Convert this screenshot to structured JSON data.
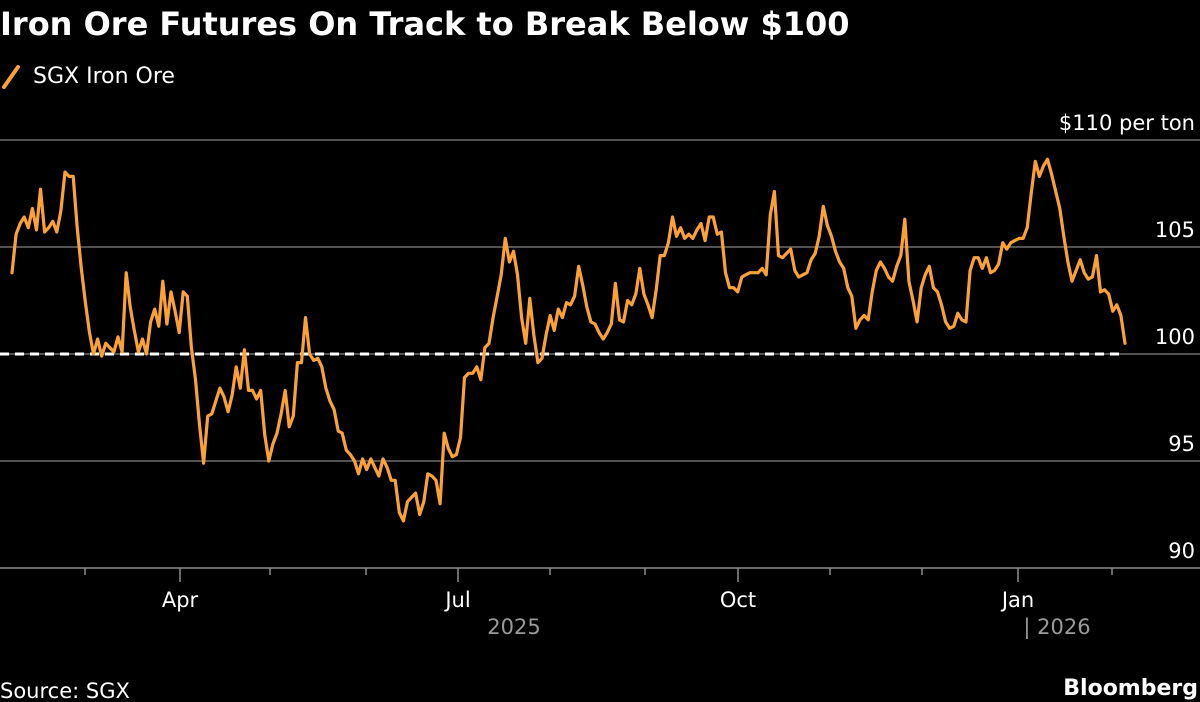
{
  "chart_data": {
    "type": "line",
    "title": "Iron Ore Futures On Track to Break Below $100",
    "legend": [
      "SGX Iron Ore"
    ],
    "legend_placement": "top-left",
    "ylabel": "$ per ton",
    "ylim": [
      90,
      110
    ],
    "y_ticks": [
      90,
      95,
      100,
      105,
      110
    ],
    "y_tick_labels": [
      "90",
      "95",
      "100",
      "105",
      "$110 per ton"
    ],
    "y_axis_side": "right",
    "grid": true,
    "x_tick_labels": [
      "Apr",
      "Jul",
      "Oct",
      "Jan"
    ],
    "year_labels": [
      "2025",
      "| 2026"
    ],
    "reference_line": {
      "value": 100,
      "style": "dashed",
      "color": "#ffffff"
    },
    "series": [
      {
        "name": "SGX Iron Ore",
        "color": "#fca234",
        "values": [
          103.8,
          105.6,
          106.1,
          106.4,
          105.9,
          106.8,
          105.8,
          107.7,
          105.7,
          105.9,
          106.2,
          105.7,
          106.7,
          108.5,
          108.3,
          108.3,
          105.9,
          104.0,
          102.4,
          101.0,
          100.0,
          100.7,
          99.9,
          100.5,
          100.3,
          100.1,
          100.8,
          100.1,
          103.8,
          102.2,
          101.1,
          100.1,
          100.7,
          100.0,
          101.5,
          102.1,
          101.3,
          103.4,
          101.4,
          102.9,
          102.0,
          101.0,
          102.9,
          102.7,
          100.3,
          98.8,
          96.7,
          94.9,
          97.1,
          97.2,
          97.8,
          98.4,
          98.0,
          97.3,
          98.1,
          99.4,
          98.4,
          100.2,
          98.3,
          98.3,
          97.9,
          98.3,
          96.2,
          95.0,
          95.8,
          96.3,
          97.2,
          98.3,
          96.6,
          97.1,
          99.6,
          99.6,
          101.7,
          100.0,
          99.7,
          99.8,
          99.4,
          98.4,
          97.8,
          97.4,
          96.4,
          96.3,
          95.5,
          95.3,
          95.0,
          94.4,
          95.1,
          94.6,
          95.1,
          94.7,
          94.3,
          95.1,
          94.7,
          94.1,
          94.1,
          92.6,
          92.2,
          93.1,
          93.3,
          93.5,
          92.5,
          93.1,
          94.4,
          94.3,
          94.1,
          93.0,
          96.3,
          95.6,
          95.2,
          95.3,
          96.1,
          98.9,
          99.1,
          99.1,
          99.4,
          98.8,
          100.3,
          100.5,
          101.7,
          102.7,
          103.7,
          105.4,
          104.3,
          104.8,
          103.7,
          101.7,
          100.5,
          102.6,
          100.9,
          99.6,
          99.8,
          100.9,
          101.8,
          101.1,
          102.1,
          101.7,
          102.4,
          102.3,
          102.7,
          104.1,
          103.2,
          102.2,
          101.5,
          101.4,
          101.0,
          100.7,
          101.0,
          101.4,
          103.3,
          101.6,
          101.5,
          102.5,
          102.3,
          102.8,
          104.0,
          102.8,
          102.3,
          101.7,
          103.0,
          104.6,
          104.6,
          105.2,
          106.4,
          105.5,
          105.9,
          105.4,
          105.6,
          105.4,
          105.8,
          106.1,
          105.3,
          106.4,
          106.4,
          105.6,
          105.7,
          103.8,
          103.1,
          103.1,
          102.9,
          103.6,
          103.7,
          103.8,
          103.8,
          103.8,
          104.0,
          103.7,
          106.5,
          107.6,
          104.6,
          104.5,
          104.7,
          104.9,
          103.9,
          103.6,
          103.7,
          103.8,
          104.4,
          104.7,
          105.5,
          106.9,
          106.0,
          105.5,
          104.8,
          104.3,
          104.0,
          103.1,
          102.7,
          101.2,
          101.6,
          101.8,
          101.6,
          102.9,
          103.9,
          104.3,
          104.0,
          103.6,
          103.4,
          104.1,
          104.6,
          106.3,
          103.4,
          102.5,
          101.5,
          103.1,
          103.7,
          104.1,
          103.1,
          102.9,
          102.3,
          101.5,
          101.2,
          101.3,
          101.9,
          101.6,
          101.5,
          103.9,
          104.5,
          104.5,
          104.0,
          104.5,
          103.8,
          103.9,
          104.2,
          105.2,
          104.9,
          105.2,
          105.3,
          105.4,
          105.4,
          105.9,
          107.5,
          109.0,
          108.3,
          108.8,
          109.1,
          108.4,
          107.6,
          106.8,
          105.5,
          104.3,
          103.4,
          103.9,
          104.4,
          103.8,
          103.5,
          103.6,
          104.6,
          102.9,
          103.0,
          102.8,
          102.0,
          102.3,
          101.8,
          100.5
        ]
      }
    ],
    "source": "Source: SGX",
    "brand": "Bloomberg"
  }
}
